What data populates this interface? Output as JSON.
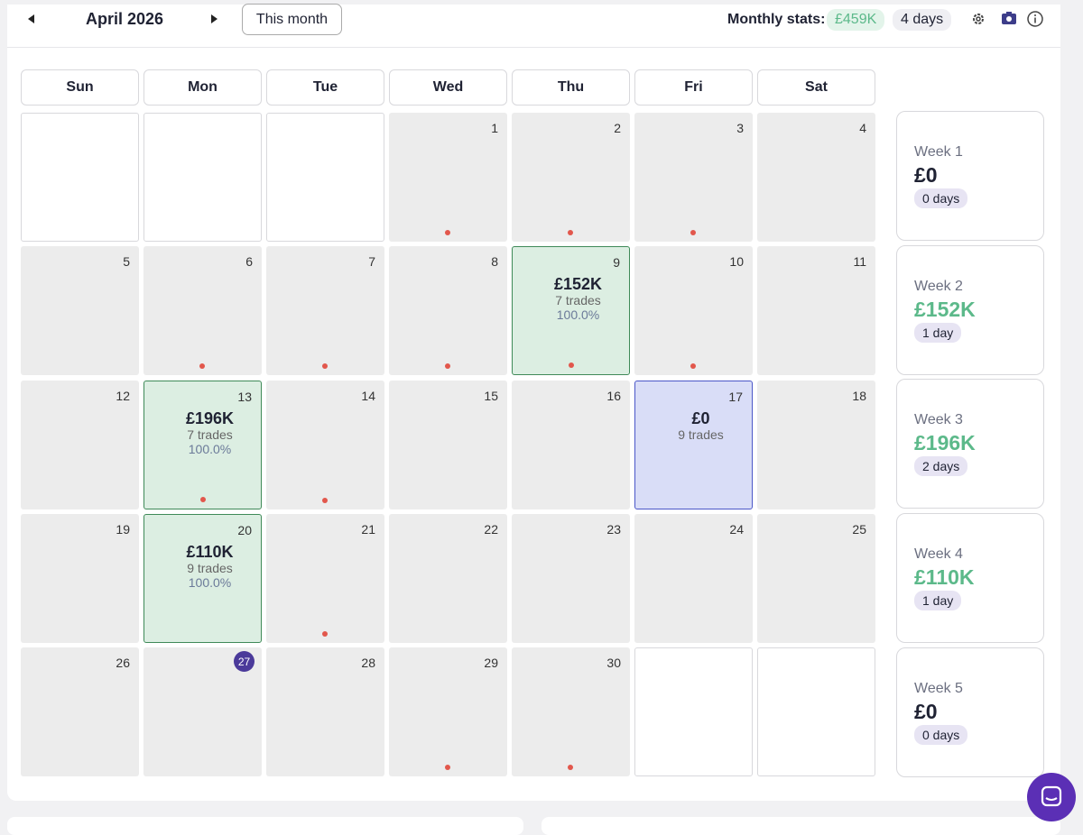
{
  "header": {
    "month": "April 2026",
    "this_month": "This month",
    "stats_label": "Monthly stats:",
    "stats_pnl": "£459K",
    "stats_days": "4 days"
  },
  "calendar": {
    "weekdays": [
      "Sun",
      "Mon",
      "Tue",
      "Wed",
      "Thu",
      "Fri",
      "Sat"
    ],
    "rows": [
      [
        null,
        null,
        null,
        {
          "day": 1,
          "dot": true
        },
        {
          "day": 2,
          "dot": true
        },
        {
          "day": 3,
          "dot": true
        },
        {
          "day": 4
        }
      ],
      [
        {
          "day": 5
        },
        {
          "day": 6,
          "dot": true
        },
        {
          "day": 7,
          "dot": true
        },
        {
          "day": 8,
          "dot": true
        },
        {
          "day": 9,
          "status": "win",
          "pnl": "£152K",
          "trades": "7 trades",
          "win_rate": "100.0%",
          "dot": true
        },
        {
          "day": 10,
          "dot": true
        },
        {
          "day": 11
        }
      ],
      [
        {
          "day": 12
        },
        {
          "day": 13,
          "status": "win",
          "pnl": "£196K",
          "trades": "7 trades",
          "win_rate": "100.0%",
          "dot": true
        },
        {
          "day": 14,
          "dot": true
        },
        {
          "day": 15
        },
        {
          "day": 16
        },
        {
          "day": 17,
          "status": "flat",
          "pnl": "£0",
          "trades": "9 trades"
        },
        {
          "day": 18
        }
      ],
      [
        {
          "day": 19
        },
        {
          "day": 20,
          "status": "win",
          "pnl": "£110K",
          "trades": "9 trades",
          "win_rate": "100.0%"
        },
        {
          "day": 21,
          "dot": true
        },
        {
          "day": 22
        },
        {
          "day": 23
        },
        {
          "day": 24
        },
        {
          "day": 25
        }
      ],
      [
        {
          "day": 26
        },
        {
          "day": 27,
          "status": "today"
        },
        {
          "day": 28
        },
        {
          "day": 29,
          "dot": true
        },
        {
          "day": 30,
          "dot": true
        },
        null,
        null
      ]
    ],
    "weeks": [
      {
        "label": "Week 1",
        "pnl": "£0",
        "days": "0 days"
      },
      {
        "label": "Week 2",
        "pnl": "£152K",
        "days": "1 day",
        "status": "win"
      },
      {
        "label": "Week 3",
        "pnl": "£196K",
        "days": "2 days",
        "status": "win"
      },
      {
        "label": "Week 4",
        "pnl": "£110K",
        "days": "1 day",
        "status": "win"
      },
      {
        "label": "Week 5",
        "pnl": "£0",
        "days": "0 days"
      }
    ]
  }
}
